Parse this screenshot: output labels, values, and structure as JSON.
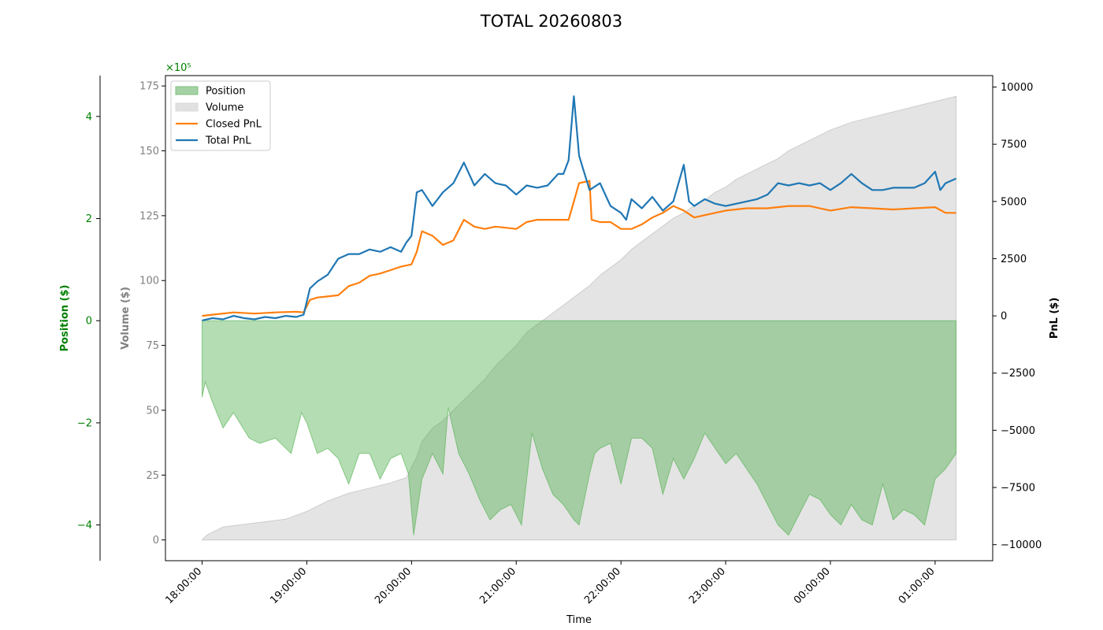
{
  "chart_data": {
    "type": "area",
    "title": "TOTAL 20260803",
    "xlabel": "Time",
    "x_ticks": [
      "18:00:00",
      "19:00:00",
      "20:00:00",
      "21:00:00",
      "22:00:00",
      "23:00:00",
      "00:00:00",
      "01:00:00"
    ],
    "x_range_hours": [
      17.65,
      25.55
    ],
    "axes": {
      "position": {
        "label": "Position ($)",
        "color": "#008000",
        "multiplier_label": "×10⁵",
        "range": [
          -4.7,
          4.8
        ],
        "ticks": [
          -4,
          -2,
          0,
          2,
          4
        ]
      },
      "volume": {
        "label": "Volume ($)",
        "color": "#808080",
        "range": [
          -8,
          179
        ],
        "ticks": [
          0,
          25,
          50,
          75,
          100,
          125,
          150,
          175
        ]
      },
      "pnl": {
        "label": "PnL ($)",
        "color": "#000000",
        "range": [
          -10700,
          10500
        ],
        "ticks": [
          -10000,
          -7500,
          -5000,
          -2500,
          0,
          2500,
          5000,
          7500,
          10000
        ]
      }
    },
    "legend": {
      "placement": "top-left",
      "items": [
        {
          "name": "Position",
          "kind": "patch",
          "color": "#7fbf7f"
        },
        {
          "name": "Volume",
          "kind": "patch",
          "color": "#d9d9d9"
        },
        {
          "name": "Closed PnL",
          "kind": "line",
          "color": "#ff7f0e"
        },
        {
          "name": "Total PnL",
          "kind": "line",
          "color": "#1f77b4"
        }
      ]
    },
    "series": [
      {
        "name": "Position",
        "axis": "position",
        "x": [
          18.0,
          18.03,
          18.1,
          18.2,
          18.3,
          18.45,
          18.55,
          18.7,
          18.85,
          18.95,
          19.0,
          19.1,
          19.2,
          19.3,
          19.4,
          19.5,
          19.6,
          19.7,
          19.8,
          19.9,
          19.97,
          20.02,
          20.1,
          20.2,
          20.3,
          20.35,
          20.45,
          20.55,
          20.65,
          20.75,
          20.85,
          20.95,
          21.05,
          21.15,
          21.25,
          21.35,
          21.45,
          21.55,
          21.6,
          21.7,
          21.75,
          21.8,
          21.9,
          22.0,
          22.1,
          22.2,
          22.3,
          22.4,
          22.5,
          22.6,
          22.7,
          22.8,
          22.9,
          23.0,
          23.1,
          23.2,
          23.3,
          23.4,
          23.5,
          23.6,
          23.7,
          23.8,
          23.9,
          24.0,
          24.1,
          24.2,
          24.3,
          24.4,
          24.5,
          24.6,
          24.7,
          24.8,
          24.9,
          25.0,
          25.1,
          25.2
        ],
        "values": [
          -1.5,
          -1.2,
          -1.6,
          -2.1,
          -1.8,
          -2.3,
          -2.4,
          -2.3,
          -2.6,
          -1.8,
          -2.0,
          -2.6,
          -2.5,
          -2.7,
          -3.2,
          -2.6,
          -2.6,
          -3.1,
          -2.7,
          -2.6,
          -3.0,
          -4.2,
          -3.1,
          -2.6,
          -3.0,
          -1.7,
          -2.6,
          -3.0,
          -3.5,
          -3.9,
          -3.7,
          -3.6,
          -4.0,
          -2.2,
          -2.9,
          -3.4,
          -3.6,
          -3.9,
          -4.0,
          -3.0,
          -2.6,
          -2.5,
          -2.4,
          -3.2,
          -2.3,
          -2.3,
          -2.5,
          -3.4,
          -2.7,
          -3.1,
          -2.7,
          -2.2,
          -2.5,
          -2.8,
          -2.6,
          -2.9,
          -3.2,
          -3.6,
          -4.0,
          -4.2,
          -3.8,
          -3.4,
          -3.5,
          -3.8,
          -4.0,
          -3.6,
          -3.9,
          -4.0,
          -3.2,
          -3.9,
          -3.7,
          -3.8,
          -4.0,
          -3.1,
          -2.9,
          -2.6
        ]
      },
      {
        "name": "Volume",
        "axis": "volume",
        "x": [
          18.0,
          18.05,
          18.2,
          18.4,
          18.6,
          18.8,
          19.0,
          19.2,
          19.4,
          19.6,
          19.8,
          19.95,
          20.05,
          20.1,
          20.2,
          20.3,
          20.4,
          20.5,
          20.6,
          20.7,
          20.8,
          20.9,
          21.0,
          21.1,
          21.2,
          21.3,
          21.4,
          21.5,
          21.6,
          21.7,
          21.8,
          21.9,
          22.0,
          22.1,
          22.2,
          22.3,
          22.4,
          22.5,
          22.6,
          22.7,
          22.8,
          22.9,
          23.0,
          23.1,
          23.2,
          23.3,
          23.4,
          23.5,
          23.6,
          23.7,
          23.8,
          23.9,
          24.0,
          24.2,
          24.4,
          24.6,
          24.8,
          25.0,
          25.1,
          25.2
        ],
        "values": [
          0,
          2,
          5,
          6,
          7,
          8,
          11,
          15,
          18,
          20,
          22,
          24,
          32,
          38,
          43,
          46,
          50,
          54,
          58,
          62,
          67,
          71,
          75,
          80,
          83,
          86,
          89,
          92,
          95,
          98,
          102,
          105,
          108,
          112,
          115,
          118,
          121,
          124,
          126,
          129,
          131,
          134,
          136,
          139,
          141,
          143,
          145,
          147,
          150,
          152,
          154,
          156,
          158,
          161,
          163,
          165,
          167,
          169,
          170,
          171
        ]
      },
      {
        "name": "Closed PnL",
        "axis": "pnl",
        "x": [
          18.0,
          18.1,
          18.3,
          18.5,
          18.7,
          18.9,
          18.97,
          19.03,
          19.1,
          19.2,
          19.3,
          19.4,
          19.5,
          19.6,
          19.7,
          19.8,
          19.9,
          20.0,
          20.05,
          20.1,
          20.2,
          20.3,
          20.4,
          20.5,
          20.6,
          20.7,
          20.8,
          20.9,
          21.0,
          21.1,
          21.2,
          21.3,
          21.4,
          21.5,
          21.55,
          21.6,
          21.7,
          21.72,
          21.8,
          21.9,
          22.0,
          22.1,
          22.2,
          22.3,
          22.4,
          22.5,
          22.6,
          22.7,
          22.8,
          22.9,
          23.0,
          23.2,
          23.4,
          23.6,
          23.8,
          24.0,
          24.2,
          24.4,
          24.6,
          24.8,
          25.0,
          25.1,
          25.2
        ],
        "values": [
          0,
          50,
          150,
          100,
          150,
          180,
          150,
          700,
          800,
          850,
          900,
          1300,
          1450,
          1750,
          1850,
          2000,
          2150,
          2250,
          2800,
          3700,
          3500,
          3100,
          3300,
          4200,
          3900,
          3800,
          3900,
          3850,
          3800,
          4100,
          4200,
          4200,
          4200,
          4200,
          5000,
          5800,
          5900,
          4200,
          4100,
          4100,
          3800,
          3800,
          4000,
          4300,
          4500,
          4800,
          4600,
          4300,
          4400,
          4500,
          4600,
          4700,
          4700,
          4800,
          4800,
          4600,
          4750,
          4700,
          4650,
          4700,
          4750,
          4500,
          4500
        ]
      },
      {
        "name": "Total PnL",
        "axis": "pnl",
        "x": [
          18.0,
          18.1,
          18.2,
          18.3,
          18.4,
          18.5,
          18.6,
          18.7,
          18.8,
          18.9,
          18.97,
          19.03,
          19.1,
          19.2,
          19.3,
          19.4,
          19.5,
          19.6,
          19.7,
          19.8,
          19.9,
          19.95,
          20.0,
          20.05,
          20.1,
          20.2,
          20.3,
          20.4,
          20.5,
          20.6,
          20.7,
          20.8,
          20.9,
          21.0,
          21.1,
          21.2,
          21.3,
          21.4,
          21.45,
          21.5,
          21.55,
          21.6,
          21.7,
          21.8,
          21.9,
          22.0,
          22.05,
          22.1,
          22.2,
          22.3,
          22.4,
          22.5,
          22.6,
          22.65,
          22.7,
          22.8,
          22.9,
          23.0,
          23.1,
          23.2,
          23.3,
          23.4,
          23.5,
          23.6,
          23.7,
          23.8,
          23.9,
          24.0,
          24.1,
          24.2,
          24.3,
          24.4,
          24.5,
          24.6,
          24.7,
          24.8,
          24.9,
          25.0,
          25.05,
          25.1,
          25.2
        ],
        "values": [
          -200,
          -100,
          -150,
          0,
          -100,
          -150,
          -50,
          -100,
          0,
          -50,
          50,
          1200,
          1500,
          1800,
          2500,
          2700,
          2700,
          2900,
          2800,
          3000,
          2800,
          3200,
          3500,
          5400,
          5500,
          4800,
          5400,
          5800,
          6700,
          5700,
          6200,
          5800,
          5700,
          5300,
          5700,
          5600,
          5700,
          6200,
          6200,
          6800,
          9600,
          7000,
          5500,
          5800,
          4800,
          4500,
          4200,
          5100,
          4700,
          5200,
          4600,
          5000,
          6600,
          5000,
          4800,
          5100,
          4900,
          4800,
          4900,
          5000,
          5100,
          5300,
          5800,
          5700,
          5800,
          5700,
          5800,
          5500,
          5800,
          6200,
          5800,
          5500,
          5500,
          5600,
          5600,
          5600,
          5800,
          6300,
          5500,
          5800,
          6000
        ]
      }
    ]
  }
}
